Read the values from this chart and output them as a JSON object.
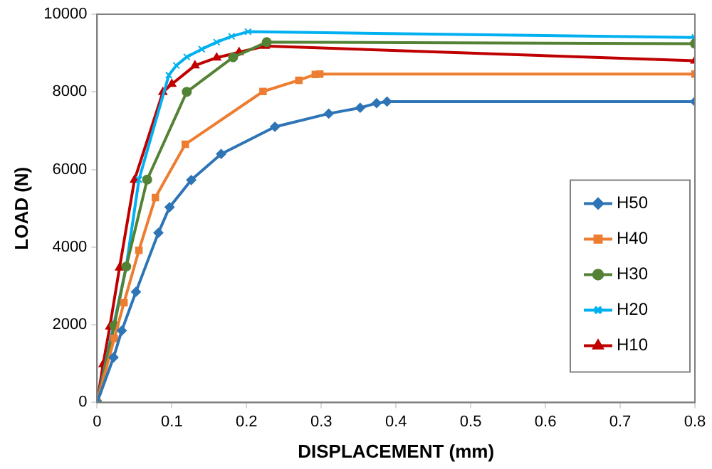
{
  "chart_data": {
    "type": "line",
    "xlabel": "DISPLACEMENT (mm)",
    "ylabel": "LOAD (N)",
    "xlim": [
      0,
      0.8
    ],
    "xticks": [
      0,
      0.1,
      0.2,
      0.3,
      0.4,
      0.5,
      0.6,
      0.7,
      0.8
    ],
    "ylim": [
      0,
      10000
    ],
    "yticks": [
      0,
      2000,
      4000,
      6000,
      8000,
      10000
    ],
    "grid": false,
    "legend": "bottom right",
    "series": [
      {
        "name": "H50",
        "color": "#2e75b6",
        "marker": "diamond",
        "x": [
          0,
          0.022,
          0.033,
          0.052,
          0.082,
          0.097,
          0.126,
          0.166,
          0.238,
          0.31,
          0.352,
          0.374,
          0.388,
          0.8
        ],
        "values": [
          0,
          1160,
          1850,
          2850,
          4370,
          5030,
          5730,
          6400,
          7100,
          7440,
          7590,
          7710,
          7750,
          7750
        ]
      },
      {
        "name": "H40",
        "color": "#ed7d31",
        "marker": "square",
        "x": [
          0,
          0.023,
          0.036,
          0.056,
          0.078,
          0.118,
          0.222,
          0.27,
          0.292,
          0.298,
          0.8
        ],
        "values": [
          0,
          1650,
          2570,
          3920,
          5280,
          6650,
          8010,
          8300,
          8450,
          8460,
          8460
        ]
      },
      {
        "name": "H30",
        "color": "#548235",
        "marker": "circle",
        "x": [
          0,
          0.023,
          0.039,
          0.067,
          0.12,
          0.182,
          0.227,
          0.8
        ],
        "values": [
          0,
          1980,
          3500,
          5740,
          8000,
          8890,
          9280,
          9240
        ]
      },
      {
        "name": "H20",
        "color": "#00b0f0",
        "marker": "cross",
        "x": [
          0,
          0.039,
          0.056,
          0.096,
          0.106,
          0.12,
          0.14,
          0.16,
          0.18,
          0.202,
          0.8
        ],
        "values": [
          0,
          3500,
          5740,
          8430,
          8680,
          8900,
          9100,
          9280,
          9430,
          9550,
          9400
        ]
      },
      {
        "name": "H10",
        "color": "#c00000",
        "marker": "triangle",
        "x": [
          0,
          0.008,
          0.017,
          0.03,
          0.05,
          0.088,
          0.1,
          0.131,
          0.16,
          0.19,
          0.225,
          0.8
        ],
        "values": [
          0,
          980,
          1950,
          3470,
          5730,
          7990,
          8200,
          8680,
          8880,
          9020,
          9180,
          8800
        ]
      }
    ]
  }
}
